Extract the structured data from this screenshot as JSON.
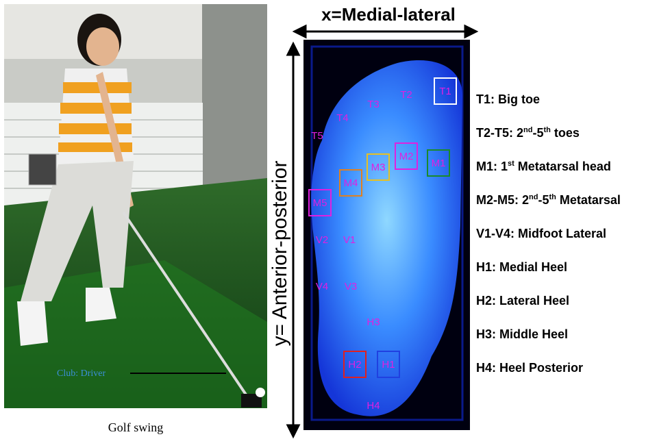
{
  "photo": {
    "annotation": "Club: Driver",
    "caption": "Golf swing"
  },
  "pressure_map": {
    "x_axis_label": "x=Medial-lateral",
    "y_axis_label": "y= Anterior-posterior",
    "regions": [
      "T1",
      "T2",
      "T3",
      "T4",
      "T5",
      "M1",
      "M2",
      "M3",
      "M4",
      "M5",
      "V1",
      "V2",
      "V3",
      "V4",
      "H1",
      "H2",
      "H3",
      "H4"
    ]
  },
  "legend": [
    [
      "T1: Big toe"
    ],
    [
      "T2-T5: 2",
      {
        "sup": "nd"
      },
      "-5",
      {
        "sup": "th"
      },
      " toes"
    ],
    [
      "M1: 1",
      {
        "sup": "st"
      },
      " Metatarsal head"
    ],
    [
      "M2-M5: 2",
      {
        "sup": "nd"
      },
      "-5",
      {
        "sup": "th"
      },
      " Metatarsal"
    ],
    [
      "V1-V4: Midfoot Lateral"
    ],
    [
      "H1: Medial Heel"
    ],
    [
      "H2: Lateral Heel"
    ],
    [
      "H3: Middle Heel"
    ],
    [
      "H4: Heel Posterior"
    ]
  ]
}
